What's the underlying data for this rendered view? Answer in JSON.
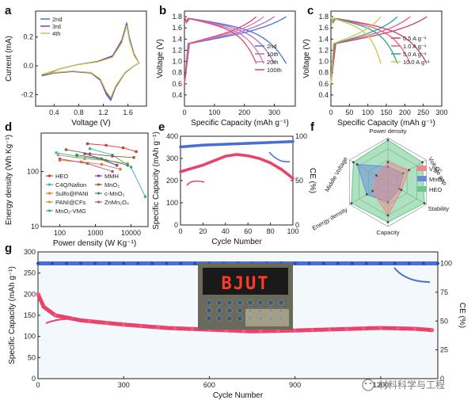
{
  "colors": {
    "blue": "#4a6fd6",
    "pink": "#e8436a",
    "yellow": "#c8c84a",
    "purple": "#8a3aa8",
    "teal": "#2aa39a",
    "green": "#5ab45a",
    "orange": "#e27a2a",
    "red": "#d9342a",
    "gray": "#7a7a7a",
    "cyan": "#30b8c8"
  },
  "watermark": "材料科学与工程",
  "panels": {
    "a": "a",
    "b": "b",
    "c": "c",
    "d": "d",
    "e": "e",
    "f": "f",
    "g": "g"
  },
  "chart_data": [
    {
      "panel": "a",
      "type": "line",
      "xlabel": "Voltage (V)",
      "ylabel": "Current (mA)",
      "xlim": [
        0.1,
        1.9
      ],
      "ylim": [
        -0.28,
        0.38
      ],
      "xticks": [
        "0.4",
        "0.8",
        "1.2",
        "1.6"
      ],
      "yticks": [
        "-0.2",
        "0.0",
        "0.2"
      ],
      "legend": [
        "2nd",
        "3rd",
        "4th"
      ],
      "series": [
        {
          "name": "2nd",
          "points": [
            [
              0.2,
              -0.07
            ],
            [
              0.4,
              -0.05
            ],
            [
              0.7,
              -0.04
            ],
            [
              1.0,
              -0.05
            ],
            [
              1.15,
              -0.1
            ],
            [
              1.25,
              -0.2
            ],
            [
              1.32,
              -0.24
            ],
            [
              1.4,
              -0.15
            ],
            [
              1.55,
              -0.05
            ],
            [
              1.7,
              0.0
            ],
            [
              1.78,
              0.02
            ],
            [
              1.7,
              0.08
            ],
            [
              1.62,
              0.2
            ],
            [
              1.58,
              0.3
            ],
            [
              1.5,
              0.18
            ],
            [
              1.35,
              0.07
            ],
            [
              1.1,
              0.03
            ],
            [
              0.8,
              0.01
            ],
            [
              0.5,
              -0.02
            ],
            [
              0.2,
              -0.07
            ]
          ]
        },
        {
          "name": "3rd",
          "points": [
            [
              0.2,
              -0.065
            ],
            [
              0.4,
              -0.048
            ],
            [
              0.7,
              -0.038
            ],
            [
              1.0,
              -0.048
            ],
            [
              1.15,
              -0.095
            ],
            [
              1.25,
              -0.19
            ],
            [
              1.32,
              -0.23
            ],
            [
              1.4,
              -0.145
            ],
            [
              1.55,
              -0.048
            ],
            [
              1.7,
              0.0
            ],
            [
              1.78,
              0.02
            ],
            [
              1.7,
              0.075
            ],
            [
              1.62,
              0.19
            ],
            [
              1.58,
              0.29
            ],
            [
              1.5,
              0.17
            ],
            [
              1.35,
              0.065
            ],
            [
              1.1,
              0.028
            ],
            [
              0.8,
              0.01
            ],
            [
              0.5,
              -0.02
            ],
            [
              0.2,
              -0.065
            ]
          ]
        },
        {
          "name": "4th",
          "points": [
            [
              0.2,
              -0.06
            ],
            [
              0.4,
              -0.046
            ],
            [
              0.7,
              -0.036
            ],
            [
              1.0,
              -0.046
            ],
            [
              1.15,
              -0.09
            ],
            [
              1.25,
              -0.18
            ],
            [
              1.32,
              -0.22
            ],
            [
              1.4,
              -0.14
            ],
            [
              1.55,
              -0.046
            ],
            [
              1.7,
              0.0
            ],
            [
              1.78,
              0.02
            ],
            [
              1.7,
              0.07
            ],
            [
              1.62,
              0.18
            ],
            [
              1.58,
              0.28
            ],
            [
              1.5,
              0.16
            ],
            [
              1.35,
              0.06
            ],
            [
              1.1,
              0.026
            ],
            [
              0.8,
              0.01
            ],
            [
              0.5,
              -0.02
            ],
            [
              0.2,
              -0.06
            ]
          ]
        }
      ]
    },
    {
      "panel": "b",
      "type": "line",
      "xlabel": "Specific Capacity (mAh g⁻¹)",
      "ylabel": "Voltage (V)",
      "xlim": [
        0,
        370
      ],
      "ylim": [
        0.2,
        1.9
      ],
      "xticks": [
        "0",
        "100",
        "200",
        "300"
      ],
      "yticks": [
        "0.4",
        "0.6",
        "0.8",
        "1.0",
        "1.2",
        "1.4",
        "1.6",
        "1.8"
      ],
      "legend": [
        "2nd",
        "10th",
        "20th",
        "100th"
      ],
      "series": [
        {
          "name": "2nd",
          "capacity": 340
        },
        {
          "name": "10th",
          "capacity": 300
        },
        {
          "name": "20th",
          "capacity": 265
        },
        {
          "name": "100th",
          "capacity": 240
        }
      ]
    },
    {
      "panel": "c",
      "type": "line",
      "xlabel": "Specific Capacity (mAh g⁻¹)",
      "ylabel": "Voltage (V)",
      "xlim": [
        0,
        300
      ],
      "ylim": [
        0.2,
        1.9
      ],
      "xticks": [
        "0",
        "50",
        "100",
        "150",
        "200",
        "250",
        "300"
      ],
      "yticks": [
        "0.4",
        "0.6",
        "0.8",
        "1.0",
        "1.2",
        "1.4",
        "1.6",
        "1.8"
      ],
      "legend": [
        "0.5 A g⁻¹",
        "1.0 A g⁻¹",
        "5.0 A g⁻¹",
        "10.0 A g⁻¹"
      ],
      "series": [
        {
          "name": "0.5 A g⁻¹",
          "capacity": 260
        },
        {
          "name": "1.0 A g⁻¹",
          "capacity": 215
        },
        {
          "name": "5.0 A g⁻¹",
          "capacity": 180
        },
        {
          "name": "10.0 A g⁻¹",
          "capacity": 135
        }
      ]
    },
    {
      "panel": "d",
      "type": "scatter",
      "xlabel": "Power density (W Kg⁻¹)",
      "ylabel": "Energy density (Wh Kg⁻¹)",
      "xscale": "log",
      "yscale": "log",
      "xlim": [
        30,
        30000
      ],
      "ylim": [
        10,
        500
      ],
      "xticks": [
        "100",
        "1000",
        "10000"
      ],
      "yticks": [
        "10",
        "100"
      ],
      "legend": [
        "HEO",
        "C4Q/Nafion",
        "Sulfo@PANI",
        "PANI@CFs",
        "MnO₂-VMG",
        "MMH",
        "MnO₂",
        "c-MnO₂",
        "ZnMn₂O₄"
      ],
      "series": [
        {
          "name": "HEO",
          "points": [
            [
              600,
              320
            ],
            [
              2000,
              300
            ],
            [
              6000,
              270
            ],
            [
              14000,
              230
            ]
          ]
        },
        {
          "name": "C4Q/Nafion",
          "points": [
            [
              80,
              220
            ],
            [
              300,
              190
            ],
            [
              1200,
              170
            ],
            [
              4000,
              130
            ]
          ]
        },
        {
          "name": "Sulfo@PANI",
          "points": [
            [
              100,
              160
            ],
            [
              400,
              150
            ],
            [
              1500,
              135
            ],
            [
              5000,
              110
            ]
          ]
        },
        {
          "name": "PANI@CFs",
          "points": [
            [
              90,
              200
            ],
            [
              500,
              170
            ],
            [
              2000,
              160
            ],
            [
              8000,
              140
            ]
          ]
        },
        {
          "name": "MnO₂-VMG",
          "points": [
            [
              700,
              260
            ],
            [
              3000,
              200
            ],
            [
              10000,
              120
            ],
            [
              25000,
              35
            ]
          ]
        },
        {
          "name": "MMH",
          "points": [
            [
              500,
              210
            ],
            [
              1500,
              170
            ],
            [
              4000,
              130
            ]
          ]
        },
        {
          "name": "MnO₂",
          "points": [
            [
              150,
              250
            ],
            [
              700,
              210
            ],
            [
              3000,
              190
            ],
            [
              12000,
              180
            ]
          ]
        },
        {
          "name": "c-MnO₂",
          "points": [
            [
              300,
              200
            ],
            [
              1500,
              170
            ],
            [
              8000,
              130
            ]
          ]
        },
        {
          "name": "ZnMn₂O₄",
          "points": [
            [
              100,
              170
            ],
            [
              600,
              140
            ],
            [
              3000,
              100
            ]
          ]
        }
      ]
    },
    {
      "panel": "e",
      "type": "scatter",
      "xlabel": "Cycle Number",
      "ylabel": "Specific Capacity (mAh g⁻¹)",
      "y2label": "CE (%)",
      "xlim": [
        0,
        100
      ],
      "ylim": [
        0,
        400
      ],
      "y2lim": [
        0,
        100
      ],
      "xticks": [
        "0",
        "20",
        "40",
        "60",
        "80",
        "100"
      ],
      "yticks": [
        "0",
        "100",
        "200",
        "300",
        "400"
      ],
      "y2ticks": [
        "0",
        "50",
        "100"
      ],
      "series": [
        {
          "name": "Specific Capacity",
          "axis": "left",
          "points": [
            [
              0,
              240
            ],
            [
              10,
              255
            ],
            [
              20,
              270
            ],
            [
              30,
              290
            ],
            [
              40,
              310
            ],
            [
              50,
              318
            ],
            [
              60,
              312
            ],
            [
              70,
              300
            ],
            [
              80,
              280
            ],
            [
              90,
              250
            ],
            [
              100,
              210
            ]
          ]
        },
        {
          "name": "CE",
          "axis": "right",
          "points": [
            [
              0,
              88
            ],
            [
              20,
              90
            ],
            [
              40,
              91
            ],
            [
              60,
              92
            ],
            [
              80,
              93
            ],
            [
              100,
              94
            ]
          ]
        }
      ]
    },
    {
      "panel": "f",
      "type": "radar",
      "axes": [
        "Power density",
        "Voltage gap",
        "Stability",
        "Capacity",
        "Energy density",
        "Middle Voltage"
      ],
      "legend": [
        "V₂O₅",
        "MnO₂",
        "HEO"
      ],
      "series": [
        {
          "name": "V₂O₅",
          "values": [
            0.45,
            0.55,
            0.35,
            0.75,
            0.4,
            0.3
          ]
        },
        {
          "name": "MnO₂",
          "values": [
            0.35,
            0.4,
            0.3,
            0.45,
            0.55,
            0.8
          ]
        },
        {
          "name": "HEO",
          "values": [
            0.95,
            0.9,
            0.95,
            0.9,
            0.95,
            0.9
          ]
        }
      ]
    },
    {
      "panel": "g",
      "type": "scatter",
      "xlabel": "Cycle Number",
      "ylabel": "Specific Capacity (mAh g⁻¹)",
      "y2label": "CE (%)",
      "xlim": [
        0,
        1400
      ],
      "ylim": [
        0,
        300
      ],
      "y2lim": [
        0,
        110
      ],
      "xticks": [
        "0",
        "300",
        "600",
        "900",
        "1200"
      ],
      "yticks": [
        "0",
        "50",
        "100",
        "150",
        "200",
        "250",
        "300"
      ],
      "y2ticks": [
        "0",
        "25",
        "50",
        "75",
        "100"
      ],
      "inset_text": "BJUT",
      "series": [
        {
          "name": "Specific Capacity",
          "axis": "left",
          "points": [
            [
              0,
              200
            ],
            [
              20,
              170
            ],
            [
              60,
              150
            ],
            [
              150,
              138
            ],
            [
              300,
              128
            ],
            [
              450,
              120
            ],
            [
              600,
              116
            ],
            [
              750,
              112
            ],
            [
              900,
              114
            ],
            [
              1050,
              117
            ],
            [
              1200,
              120
            ],
            [
              1320,
              118
            ],
            [
              1380,
              115
            ]
          ]
        },
        {
          "name": "CE",
          "axis": "right",
          "points": [
            [
              0,
              100
            ],
            [
              300,
              100
            ],
            [
              600,
              100
            ],
            [
              900,
              100
            ],
            [
              1200,
              100
            ],
            [
              1400,
              100
            ]
          ]
        }
      ]
    }
  ]
}
